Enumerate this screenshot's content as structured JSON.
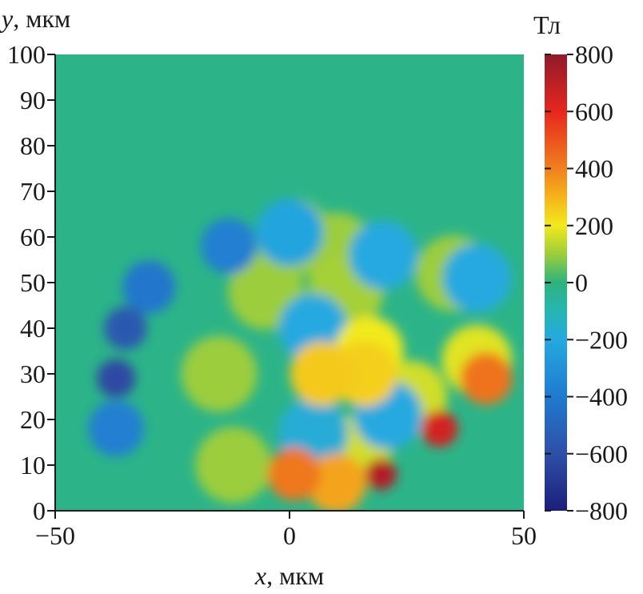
{
  "chart_data": {
    "type": "heatmap",
    "title": "",
    "xlabel": {
      "var": "x",
      "unit": ", мкм"
    },
    "ylabel": {
      "var": "y",
      "unit": ", мкм"
    },
    "xlim": [
      -50,
      50
    ],
    "ylim": [
      0,
      100
    ],
    "x_ticks": [
      {
        "value": -50,
        "label": "−50"
      },
      {
        "value": 0,
        "label": "0"
      },
      {
        "value": 50,
        "label": "50"
      }
    ],
    "y_ticks": [
      {
        "value": 0,
        "label": "0"
      },
      {
        "value": 10,
        "label": "10"
      },
      {
        "value": 20,
        "label": "20"
      },
      {
        "value": 30,
        "label": "30"
      },
      {
        "value": 40,
        "label": "40"
      },
      {
        "value": 50,
        "label": "50"
      },
      {
        "value": 60,
        "label": "60"
      },
      {
        "value": 70,
        "label": "70"
      },
      {
        "value": 80,
        "label": "80"
      },
      {
        "value": 90,
        "label": "90"
      },
      {
        "value": 100,
        "label": "100"
      }
    ],
    "colorbar": {
      "unit": "Тл",
      "range": [
        -800,
        800
      ],
      "ticks": [
        {
          "value": 800,
          "label": "800"
        },
        {
          "value": 600,
          "label": "600"
        },
        {
          "value": 400,
          "label": "400"
        },
        {
          "value": 200,
          "label": "200"
        },
        {
          "value": 0,
          "label": "0"
        },
        {
          "value": -200,
          "label": "−200"
        },
        {
          "value": -400,
          "label": "−400"
        },
        {
          "value": -600,
          "label": "−600"
        },
        {
          "value": -800,
          "label": "−800"
        }
      ],
      "stops": [
        {
          "value": -800,
          "color": "#1b1f7a"
        },
        {
          "value": -600,
          "color": "#2f4fa8"
        },
        {
          "value": -400,
          "color": "#1f7ad0"
        },
        {
          "value": -200,
          "color": "#25a9e0"
        },
        {
          "value": -100,
          "color": "#26b6b0"
        },
        {
          "value": 0,
          "color": "#2db37e"
        },
        {
          "value": 100,
          "color": "#9ccd3c"
        },
        {
          "value": 200,
          "color": "#f2ea1c"
        },
        {
          "value": 300,
          "color": "#f6b31b"
        },
        {
          "value": 400,
          "color": "#f0801e"
        },
        {
          "value": 600,
          "color": "#e8261e"
        },
        {
          "value": 800,
          "color": "#8e1b2a"
        }
      ]
    },
    "background_value": -20,
    "field_features": [
      {
        "x": -37.0,
        "y": 29.0,
        "value": -620
      },
      {
        "x": -35.0,
        "y": 40.0,
        "value": -560
      },
      {
        "x": -30.0,
        "y": 49.0,
        "value": -420
      },
      {
        "x": -13.0,
        "y": 58.0,
        "value": -380
      },
      {
        "x": -37.0,
        "y": 18.0,
        "value": -380
      },
      {
        "x": 0.0,
        "y": 61.0,
        "value": -220
      },
      {
        "x": 20.0,
        "y": 56.0,
        "value": -200
      },
      {
        "x": 40.0,
        "y": 51.0,
        "value": -200
      },
      {
        "x": 5.0,
        "y": 40.0,
        "value": -200
      },
      {
        "x": 5.0,
        "y": 17.0,
        "value": -180
      },
      {
        "x": 21.0,
        "y": 21.0,
        "value": -200
      },
      {
        "x": -5.0,
        "y": 48.0,
        "value": 100
      },
      {
        "x": -15.0,
        "y": 30.0,
        "value": 100
      },
      {
        "x": -12.0,
        "y": 10.0,
        "value": 100
      },
      {
        "x": 10.0,
        "y": 57.0,
        "value": 100
      },
      {
        "x": 35.0,
        "y": 52.0,
        "value": 100
      },
      {
        "x": 12.0,
        "y": 48.0,
        "value": 110
      },
      {
        "x": 1.0,
        "y": 60.0,
        "value": 100
      },
      {
        "x": 7.0,
        "y": 30.0,
        "value": 260
      },
      {
        "x": 16.0,
        "y": 30.0,
        "value": 250
      },
      {
        "x": 17.0,
        "y": 35.0,
        "value": 200
      },
      {
        "x": 40.0,
        "y": 33.0,
        "value": 180
      },
      {
        "x": 26.0,
        "y": 25.0,
        "value": 160
      },
      {
        "x": 14.0,
        "y": 13.0,
        "value": 160
      },
      {
        "x": 32.0,
        "y": 18.0,
        "value": 650
      },
      {
        "x": 19.5,
        "y": 8.0,
        "value": 720
      },
      {
        "x": 1.0,
        "y": 8.0,
        "value": 420
      },
      {
        "x": 10.0,
        "y": 6.0,
        "value": 330
      },
      {
        "x": 42.0,
        "y": 29.0,
        "value": 430
      }
    ],
    "grid": false,
    "legend": "colorbar-right"
  }
}
